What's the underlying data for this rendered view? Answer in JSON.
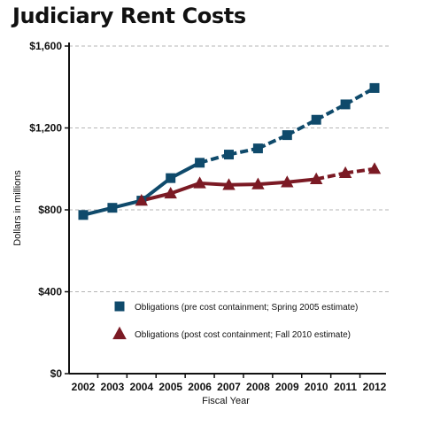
{
  "chart_data": {
    "type": "line",
    "title": "Judiciary Rent Costs",
    "xlabel": "Fiscal Year",
    "ylabel": "Dollars in millions",
    "categories": [
      "2002",
      "2003",
      "2004",
      "2005",
      "2006",
      "2007",
      "2008",
      "2009",
      "2010",
      "2011",
      "2012"
    ],
    "ylim": [
      0,
      1600
    ],
    "yticks": [
      0,
      400,
      800,
      1200,
      1600
    ],
    "ytick_labels": [
      "$0",
      "$400",
      "$800",
      "$1,200",
      "$1,600"
    ],
    "grid": "horizontal dashed",
    "legend_position": "lower-center",
    "series": [
      {
        "name": "Obligations (pre cost containment; Spring 2005 estimate)",
        "marker": "square",
        "color": "#0f4a6b",
        "values": [
          775,
          810,
          845,
          955,
          1030,
          1070,
          1100,
          1165,
          1240,
          1315,
          1395
        ],
        "solid_until_index": 4
      },
      {
        "name": "Obligations (post cost containment; Fall 2010 estimate)",
        "marker": "triangle",
        "color": "#7b1a24",
        "values": [
          null,
          null,
          845,
          880,
          930,
          922,
          925,
          935,
          950,
          980,
          1000
        ],
        "solid_until_index": 8
      }
    ]
  }
}
